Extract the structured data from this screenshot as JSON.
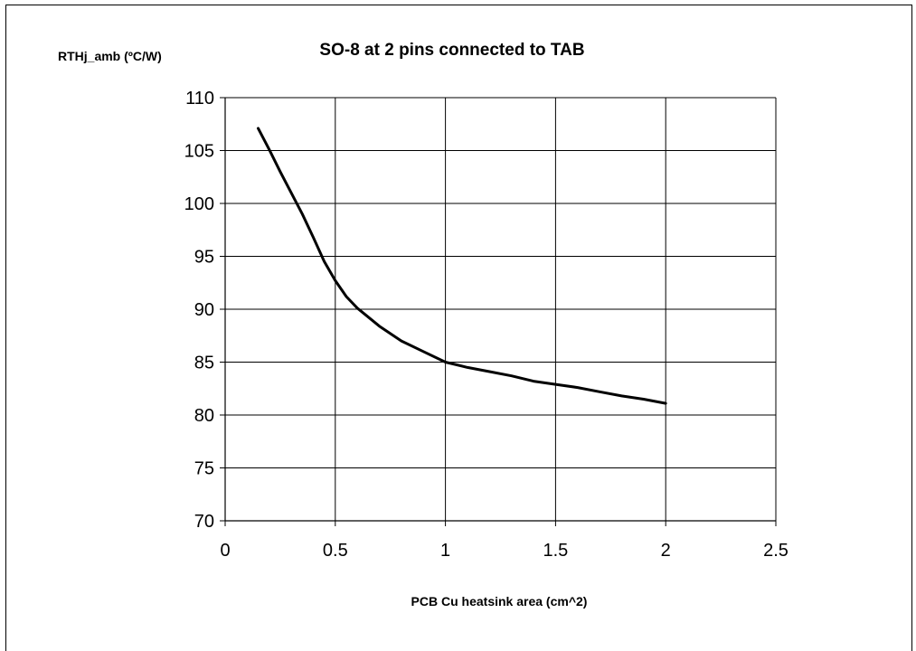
{
  "chart_data": {
    "type": "line",
    "title": "SO-8 at 2 pins connected to TAB",
    "xlabel": "PCB Cu heatsink area (cm^2)",
    "ylabel": "RTHj_amb (ºC/W)",
    "xlim": [
      0,
      2.5
    ],
    "ylim": [
      70,
      110
    ],
    "xticks": [
      0,
      0.5,
      1,
      1.5,
      2,
      2.5
    ],
    "xtick_labels": [
      "0",
      "0.5",
      "1",
      "1.5",
      "2",
      "2.5"
    ],
    "yticks": [
      70,
      75,
      80,
      85,
      90,
      95,
      100,
      105,
      110
    ],
    "ytick_labels": [
      "70",
      "75",
      "80",
      "85",
      "90",
      "95",
      "100",
      "105",
      "110"
    ],
    "grid": true,
    "series": [
      {
        "color": "#000000",
        "x": [
          0.15,
          0.2,
          0.25,
          0.3,
          0.35,
          0.4,
          0.45,
          0.5,
          0.55,
          0.6,
          0.7,
          0.8,
          0.9,
          1.0,
          1.1,
          1.2,
          1.3,
          1.4,
          1.5,
          1.6,
          1.7,
          1.8,
          1.9,
          2.0
        ],
        "y": [
          107.1,
          105.1,
          103.0,
          101.0,
          99.0,
          96.8,
          94.5,
          92.7,
          91.2,
          90.1,
          88.4,
          87.0,
          86.0,
          85.0,
          84.5,
          84.1,
          83.7,
          83.2,
          82.9,
          82.6,
          82.2,
          81.8,
          81.5,
          81.1
        ]
      }
    ]
  }
}
